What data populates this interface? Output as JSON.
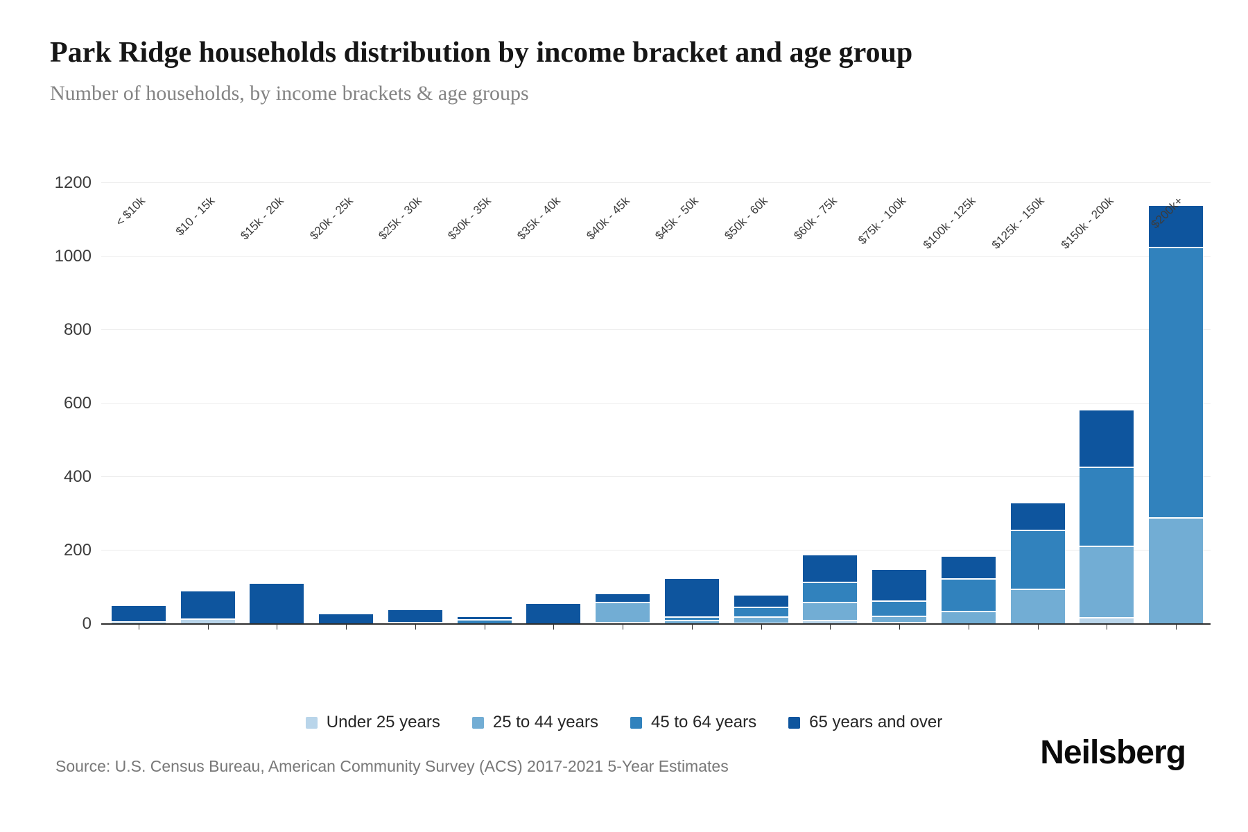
{
  "header": {
    "title": "Park Ridge households distribution by income bracket and age group",
    "subtitle": "Number of households, by income brackets & age groups"
  },
  "footer": {
    "source": "Source: U.S. Census Bureau, American Community Survey (ACS) 2017-2021 5-Year Estimates",
    "logo": "Neilsberg"
  },
  "chart_data": {
    "type": "bar",
    "stacked": true,
    "title": "Park Ridge households distribution by income bracket and age group",
    "xlabel": "",
    "ylabel": "Number of households",
    "ylim": [
      0,
      1200
    ],
    "yticks": [
      0,
      200,
      400,
      600,
      800,
      1000,
      1200
    ],
    "grid": true,
    "legend_position": "bottom",
    "categories": [
      "< $10k",
      "$10 - 15k",
      "$15k - 20k",
      "$20k - 25k",
      "$25k - 30k",
      "$30k - 35k",
      "$35k - 40k",
      "$40k - 45k",
      "$45k - 50k",
      "$50k - 60k",
      "$60k - 75k",
      "$75k - 100k",
      "$100k - 125k",
      "$125k - 150k",
      "$150k - 200k",
      "$200k+"
    ],
    "series": [
      {
        "name": "Under 25 years",
        "color": "#b9d5ea",
        "values": [
          0,
          15,
          0,
          0,
          0,
          0,
          0,
          5,
          0,
          4,
          12,
          6,
          0,
          0,
          18,
          0
        ]
      },
      {
        "name": "25 to 44 years",
        "color": "#72add4",
        "values": [
          8,
          0,
          0,
          0,
          5,
          0,
          0,
          55,
          12,
          17,
          48,
          16,
          36,
          96,
          196,
          290
        ]
      },
      {
        "name": "45 to 64 years",
        "color": "#3182bd",
        "values": [
          0,
          0,
          0,
          0,
          0,
          14,
          0,
          0,
          8,
          27,
          55,
          42,
          88,
          160,
          215,
          736
        ]
      },
      {
        "name": "65 years and over",
        "color": "#0e559e",
        "values": [
          42,
          73,
          110,
          26,
          33,
          5,
          55,
          22,
          103,
          30,
          72,
          84,
          59,
          72,
          152,
          112
        ]
      }
    ]
  }
}
